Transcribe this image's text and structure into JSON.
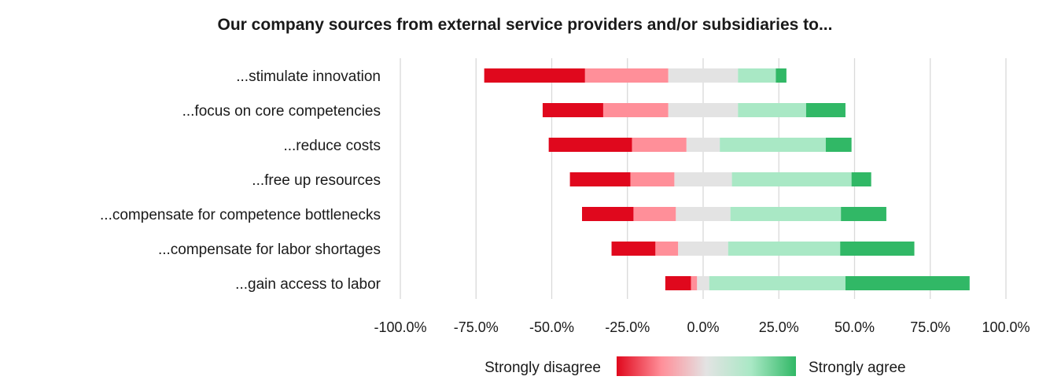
{
  "chart_data": {
    "type": "bar",
    "orientation": "horizontal",
    "stacked": true,
    "diverging": true,
    "title": "Our company sources from external service providers and/or subsidiaries to...",
    "categories": [
      "...stimulate innovation",
      "...focus on core competencies",
      "...reduce costs",
      "...free up resources",
      "...compensate for competence bottlenecks",
      "...compensate for labor shortages",
      "...gain access to labor"
    ],
    "series": [
      {
        "color": "#e0081d",
        "values": [
          -0.333,
          -0.2,
          -0.275,
          -0.2,
          -0.17,
          -0.145,
          -0.085
        ]
      },
      {
        "color": "#ff8f99",
        "values": [
          -0.275,
          -0.215,
          -0.18,
          -0.145,
          -0.14,
          -0.075,
          -0.02
        ]
      },
      {
        "color": "#e3e3e3",
        "values": [
          0.23,
          0.23,
          0.11,
          0.19,
          0.18,
          0.165,
          0.04
        ]
      },
      {
        "color": "#a9e8c5",
        "values": [
          0.125,
          0.225,
          0.35,
          0.395,
          0.365,
          0.37,
          0.45
        ]
      },
      {
        "color": "#31b866",
        "values": [
          0.035,
          0.13,
          0.085,
          0.065,
          0.15,
          0.245,
          0.41
        ]
      }
    ],
    "xlim": [
      -1.0,
      1.0
    ],
    "xticks": [
      -1.0,
      -0.75,
      -0.5,
      -0.25,
      0.0,
      0.25,
      0.5,
      0.75,
      1.0
    ],
    "xtick_labels": [
      "-100.0%",
      "-75.0%",
      "-50.0%",
      "-25.0%",
      "0.0%",
      "25.0%",
      "50.0%",
      "75.0%",
      "100.0%"
    ],
    "grid": true,
    "legend": {
      "position": "bottom",
      "left_label": "Strongly disagree",
      "right_label": "Strongly agree",
      "gradient": [
        "#e0081d",
        "#ff8f99",
        "#e3e3e3",
        "#a9e8c5",
        "#31b866"
      ]
    }
  }
}
